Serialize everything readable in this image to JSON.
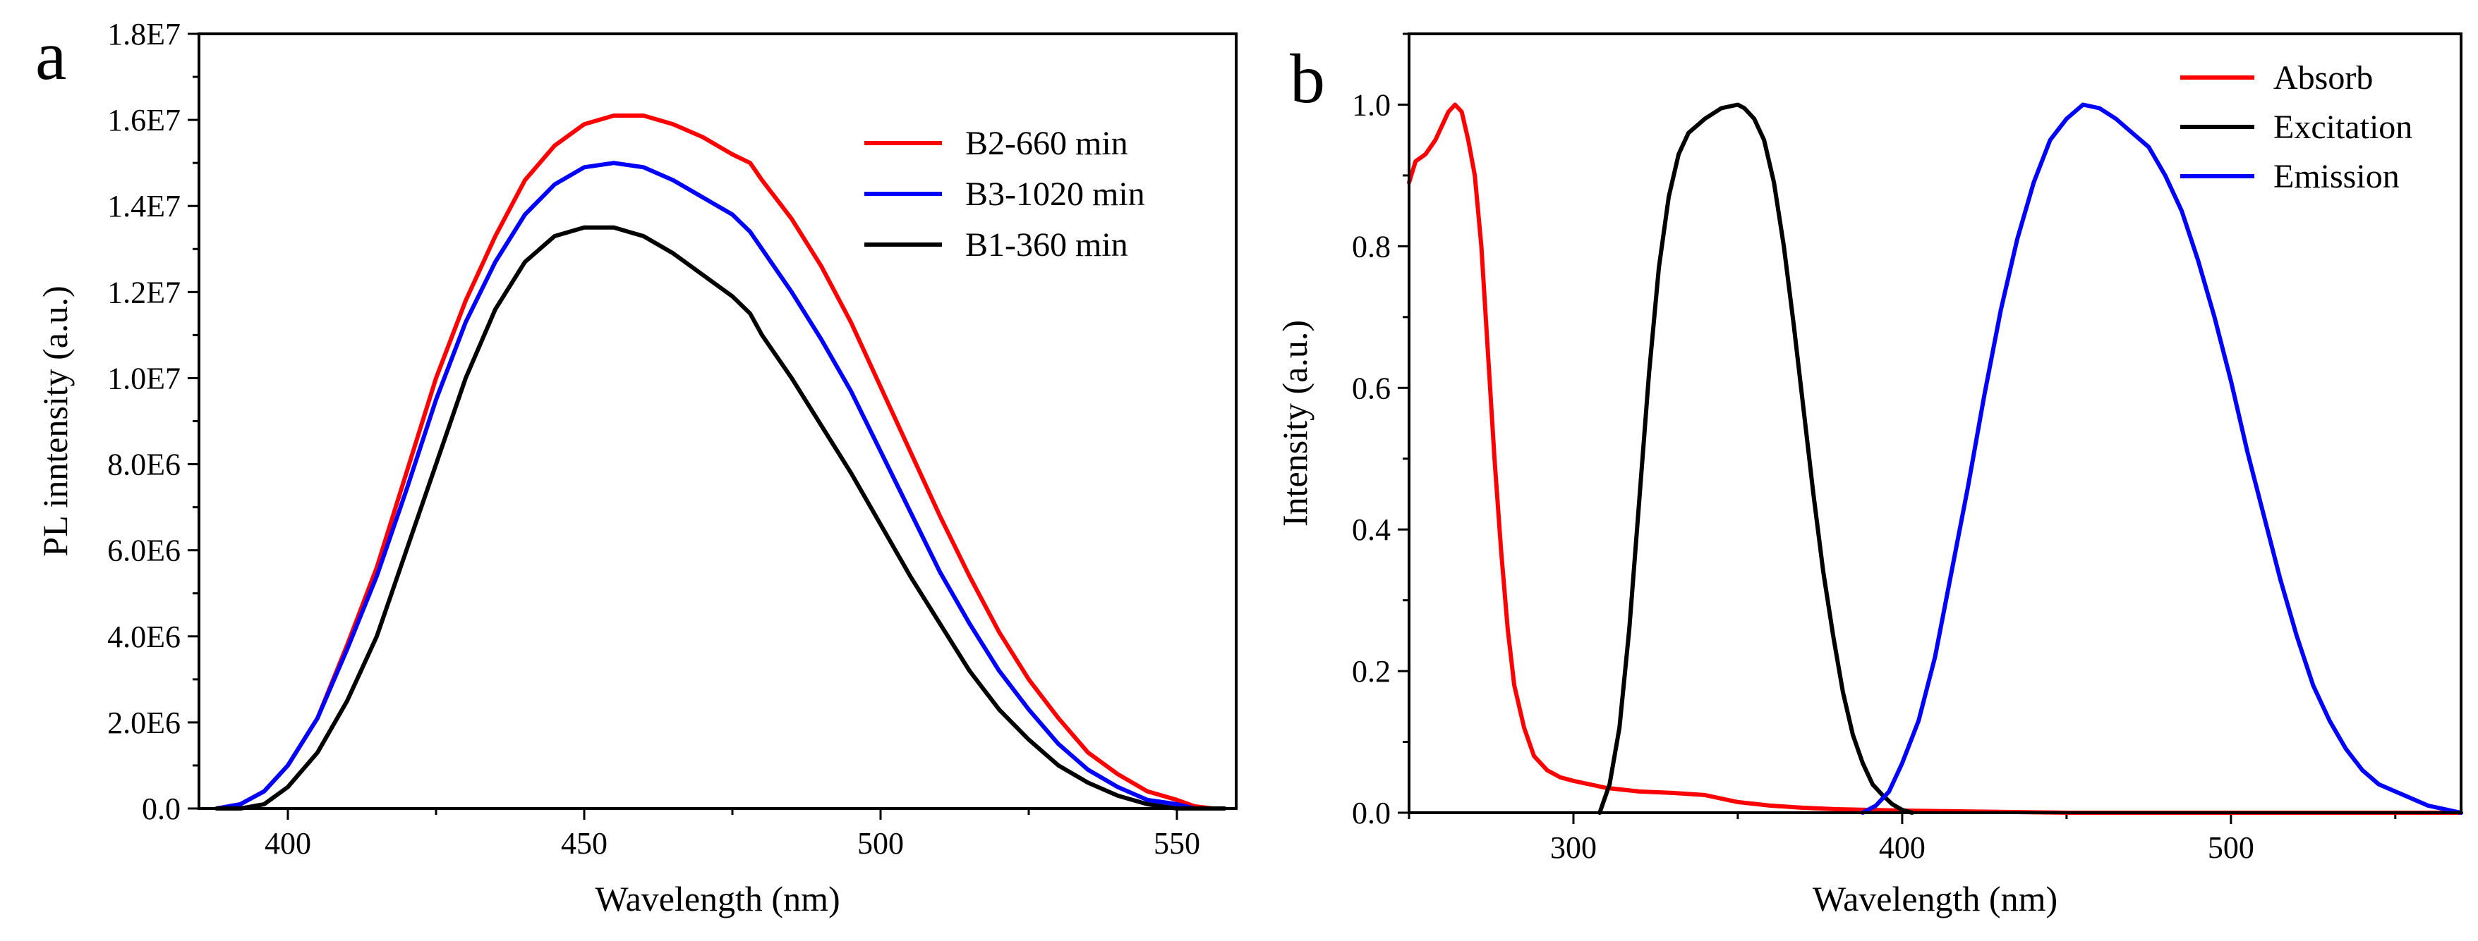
{
  "chart_data": [
    {
      "panel_label": "a",
      "type": "line",
      "xlabel": "Wavelength (nm)",
      "ylabel": "PL inntensity (a.u.)",
      "xlim": [
        385,
        560
      ],
      "ylim": [
        0,
        18000000
      ],
      "xticks": [
        400,
        450,
        500,
        550
      ],
      "yticks": [
        0,
        2000000,
        4000000,
        6000000,
        8000000,
        10000000,
        12000000,
        14000000,
        16000000,
        18000000
      ],
      "ytick_labels": [
        "0.0",
        "2.0E6",
        "4.0E6",
        "6.0E6",
        "8.0E6",
        "1.0E7",
        "1.2E7",
        "1.4E7",
        "1.6E7",
        "1.8E7"
      ],
      "legend_position": "top-right",
      "series": [
        {
          "name": "B2-660 min",
          "color": "#ff0000",
          "x": [
            388,
            392,
            396,
            400,
            405,
            410,
            415,
            420,
            425,
            430,
            435,
            440,
            445,
            450,
            455,
            460,
            465,
            470,
            475,
            478,
            480,
            485,
            490,
            495,
            500,
            505,
            510,
            515,
            520,
            525,
            530,
            535,
            540,
            545,
            550,
            553,
            556,
            558
          ],
          "values": [
            0,
            100000,
            400000,
            1000000,
            2100000,
            3800000,
            5600000,
            7800000,
            10000000,
            11800000,
            13300000,
            14600000,
            15400000,
            15900000,
            16100000,
            16100000,
            15900000,
            15600000,
            15200000,
            15000000,
            14600000,
            13700000,
            12600000,
            11300000,
            9800000,
            8300000,
            6800000,
            5400000,
            4100000,
            3000000,
            2100000,
            1300000,
            800000,
            400000,
            200000,
            50000,
            0,
            0
          ]
        },
        {
          "name": "B3-1020 min",
          "color": "#0000ff",
          "x": [
            388,
            392,
            396,
            400,
            405,
            410,
            415,
            420,
            425,
            430,
            435,
            440,
            445,
            450,
            455,
            460,
            465,
            470,
            475,
            478,
            480,
            485,
            490,
            495,
            500,
            505,
            510,
            515,
            520,
            525,
            530,
            535,
            540,
            545,
            550,
            553,
            556,
            558
          ],
          "values": [
            0,
            100000,
            400000,
            1000000,
            2100000,
            3700000,
            5400000,
            7400000,
            9500000,
            11300000,
            12700000,
            13800000,
            14500000,
            14900000,
            15000000,
            14900000,
            14600000,
            14200000,
            13800000,
            13400000,
            13000000,
            12000000,
            10900000,
            9700000,
            8300000,
            6900000,
            5500000,
            4300000,
            3200000,
            2300000,
            1500000,
            900000,
            500000,
            200000,
            100000,
            0,
            0,
            0
          ]
        },
        {
          "name": "B1-360 min",
          "color": "#000000",
          "x": [
            388,
            392,
            396,
            400,
            405,
            410,
            415,
            420,
            425,
            430,
            435,
            440,
            445,
            450,
            455,
            460,
            465,
            470,
            475,
            478,
            480,
            485,
            490,
            495,
            500,
            505,
            510,
            515,
            520,
            525,
            530,
            535,
            540,
            545,
            550,
            553,
            556,
            558
          ],
          "values": [
            0,
            0,
            100000,
            500000,
            1300000,
            2500000,
            4000000,
            6000000,
            8000000,
            10000000,
            11600000,
            12700000,
            13300000,
            13500000,
            13500000,
            13300000,
            12900000,
            12400000,
            11900000,
            11500000,
            11000000,
            10000000,
            8900000,
            7800000,
            6600000,
            5400000,
            4300000,
            3200000,
            2300000,
            1600000,
            1000000,
            600000,
            300000,
            100000,
            0,
            0,
            0,
            0
          ]
        }
      ]
    },
    {
      "panel_label": "b",
      "type": "line",
      "xlabel": "Wavelength (nm)",
      "ylabel": "Intensity (a.u.)",
      "xlim": [
        250,
        570
      ],
      "ylim": [
        0,
        1.1
      ],
      "xticks": [
        300,
        400,
        500
      ],
      "yticks": [
        0.0,
        0.2,
        0.4,
        0.6,
        0.8,
        1.0
      ],
      "ytick_labels": [
        "0.0",
        "0.2",
        "0.4",
        "0.6",
        "0.8",
        "1.0"
      ],
      "legend_position": "top-right",
      "series": [
        {
          "name": "Absorb",
          "color": "#ff0000",
          "x": [
            250,
            252,
            255,
            258,
            260,
            262,
            264,
            266,
            268,
            270,
            272,
            274,
            276,
            278,
            280,
            282,
            285,
            288,
            292,
            296,
            300,
            305,
            310,
            320,
            330,
            340,
            345,
            350,
            360,
            370,
            380,
            400,
            450,
            500,
            570
          ],
          "values": [
            0.89,
            0.92,
            0.93,
            0.95,
            0.97,
            0.99,
            1.0,
            0.99,
            0.95,
            0.9,
            0.8,
            0.65,
            0.5,
            0.37,
            0.26,
            0.18,
            0.12,
            0.08,
            0.06,
            0.05,
            0.045,
            0.04,
            0.035,
            0.03,
            0.028,
            0.025,
            0.02,
            0.015,
            0.01,
            0.007,
            0.005,
            0.003,
            0.0,
            0.0,
            0.0
          ]
        },
        {
          "name": "Excitation",
          "color": "#000000",
          "x": [
            308,
            311,
            314,
            317,
            320,
            323,
            326,
            329,
            332,
            335,
            340,
            345,
            350,
            352,
            355,
            358,
            361,
            364,
            367,
            370,
            373,
            376,
            379,
            382,
            385,
            388,
            391,
            394,
            397,
            400,
            403
          ],
          "values": [
            0.0,
            0.04,
            0.12,
            0.26,
            0.44,
            0.62,
            0.77,
            0.87,
            0.93,
            0.96,
            0.98,
            0.995,
            1.0,
            0.995,
            0.98,
            0.95,
            0.89,
            0.8,
            0.69,
            0.57,
            0.45,
            0.34,
            0.25,
            0.17,
            0.11,
            0.07,
            0.04,
            0.025,
            0.012,
            0.004,
            0.0
          ]
        },
        {
          "name": "Emission",
          "color": "#0000ff",
          "x": [
            388,
            392,
            396,
            400,
            405,
            410,
            415,
            420,
            425,
            430,
            435,
            440,
            445,
            450,
            455,
            460,
            465,
            470,
            475,
            480,
            485,
            490,
            495,
            500,
            505,
            510,
            515,
            520,
            525,
            530,
            535,
            540,
            545,
            550,
            555,
            560,
            565,
            570
          ],
          "values": [
            0.0,
            0.01,
            0.03,
            0.07,
            0.13,
            0.22,
            0.34,
            0.46,
            0.59,
            0.71,
            0.81,
            0.89,
            0.95,
            0.98,
            1.0,
            0.995,
            0.98,
            0.96,
            0.94,
            0.9,
            0.85,
            0.78,
            0.7,
            0.61,
            0.51,
            0.42,
            0.33,
            0.25,
            0.18,
            0.13,
            0.09,
            0.06,
            0.04,
            0.03,
            0.02,
            0.01,
            0.005,
            0.0
          ]
        }
      ]
    }
  ]
}
